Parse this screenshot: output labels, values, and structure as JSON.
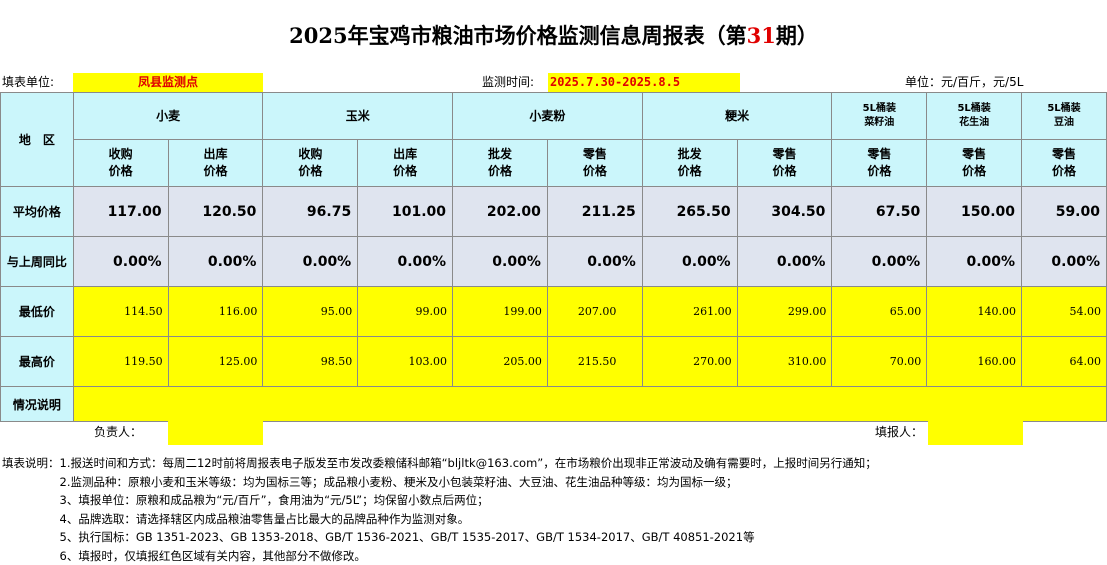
{
  "title": {
    "prefix": "2025年宝鸡市粮油市场价格监测信息周报表（第",
    "issue": "31",
    "suffix": "期）"
  },
  "header": {
    "unit_label": "填表单位:",
    "unit_value": "凤县监测点",
    "time_label": "监测时间:",
    "time_value": "2025.7.30-2025.8.5",
    "price_unit": "单位：元/百斤，元/5L"
  },
  "table": {
    "region_label": "地　区",
    "groups": [
      "小麦",
      "玉米",
      "小麦粉",
      "粳米"
    ],
    "oil_groups": [
      "5L桶装\n菜籽油",
      "5L桶装\n花生油",
      "5L桶装\n豆油"
    ],
    "sub_headers": [
      "收购\n价格",
      "出库\n价格",
      "收购\n价格",
      "出库\n价格",
      "批发\n价格",
      "零售\n价格",
      "批发\n价格",
      "零售\n价格",
      "零售\n价格",
      "零售\n价格",
      "零售\n价格"
    ],
    "rows": [
      {
        "label": "平均价格",
        "values": [
          "117.00",
          "120.50",
          "96.75",
          "101.00",
          "202.00",
          "211.25",
          "265.50",
          "304.50",
          "67.50",
          "150.00",
          "59.00"
        ]
      },
      {
        "label": "与上周同比",
        "values": [
          "0.00%",
          "0.00%",
          "0.00%",
          "0.00%",
          "0.00%",
          "0.00%",
          "0.00%",
          "0.00%",
          "0.00%",
          "0.00%",
          "0.00%"
        ]
      },
      {
        "label": "最低价",
        "values": [
          "114.50",
          "116.00",
          "95.00",
          "99.00",
          "199.00",
          "207.00",
          "261.00",
          "299.00",
          "65.00",
          "140.00",
          "54.00"
        ]
      },
      {
        "label": "最高价",
        "values": [
          "119.50",
          "125.00",
          "98.50",
          "103.00",
          "205.00",
          "215.50",
          "270.00",
          "310.00",
          "70.00",
          "160.00",
          "64.00"
        ]
      }
    ],
    "remarks_label": "情况说明"
  },
  "footer": {
    "responsible_label": "负责人：",
    "filler_label": "填报人："
  },
  "notes": [
    "填表说明：1.报送时间和方式：每周二12时前将周报表电子版发至市发改委粮储科邮箱“bljltk@163.com”，在市场粮价出现非正常波动及确有需要时，上报时间另行通知；",
    "　　　　　2.监测品种：原粮小麦和玉米等级：均为国标三等；成品粮小麦粉、粳米及小包装菜籽油、大豆油、花生油品种等级：均为国标一级；",
    "　　　　　3、填报单位：原粮和成品粮为“元/百斤”，食用油为“元/5L”；均保留小数点后两位；",
    "　　　　　4、品牌选取：请选择辖区内成品粮油零售量占比最大的品牌品种作为监测对象。",
    "　　　　　5、执行国标：GB 1351-2023、GB 1353-2018、GB/T 1536-2021、GB/T 1535-2017、GB/T 1534-2017、GB/T 40851-2021等",
    "　　　　　6、填报时，仅填报红色区域有关内容，其他部分不做修改。"
  ]
}
